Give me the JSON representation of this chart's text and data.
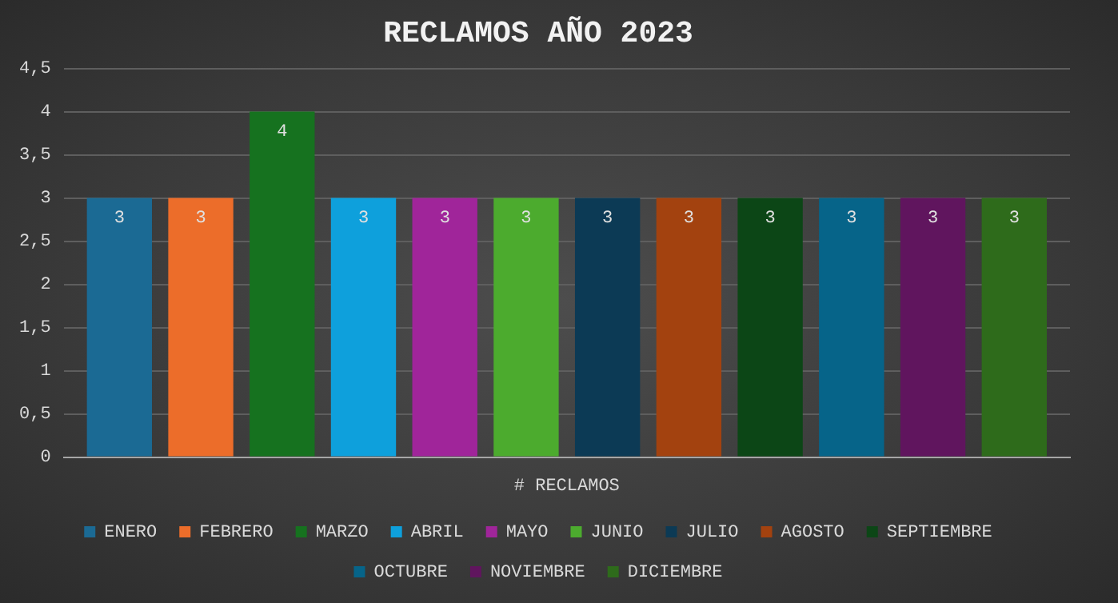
{
  "chart_data": {
    "type": "bar",
    "title": "RECLAMOS AÑO 2023",
    "categories": [
      "# RECLAMOS"
    ],
    "series": [
      {
        "name": "ENERO",
        "color": "#1b6a94",
        "values": [
          3
        ]
      },
      {
        "name": "FEBRERO",
        "color": "#ec6d2a",
        "values": [
          3
        ]
      },
      {
        "name": "MARZO",
        "color": "#16721f",
        "values": [
          4
        ]
      },
      {
        "name": "ABRIL",
        "color": "#0ea0dc",
        "values": [
          3
        ]
      },
      {
        "name": "MAYO",
        "color": "#a0259a",
        "values": [
          3
        ]
      },
      {
        "name": "JUNIO",
        "color": "#4cab2e",
        "values": [
          3
        ]
      },
      {
        "name": "JULIO",
        "color": "#0c3a55",
        "values": [
          3
        ]
      },
      {
        "name": "AGOSTO",
        "color": "#a3420f",
        "values": [
          3
        ]
      },
      {
        "name": "SEPTIEMBRE",
        "color": "#0c4616",
        "values": [
          3
        ]
      },
      {
        "name": "OCTUBRE",
        "color": "#066489",
        "values": [
          3
        ]
      },
      {
        "name": "NOVIEMBRE",
        "color": "#60155e",
        "values": [
          3
        ]
      },
      {
        "name": "DICIEMBRE",
        "color": "#2e6b1b",
        "values": [
          3
        ]
      }
    ],
    "ylim": [
      0,
      4.5
    ],
    "yticks": [
      0,
      {
        "value": 0.5,
        "label": "0,5"
      },
      1,
      {
        "value": 1.5,
        "label": "1,5"
      },
      2,
      {
        "value": 2.5,
        "label": "2,5"
      },
      3,
      {
        "value": 3.5,
        "label": "3,5"
      },
      4,
      {
        "value": 4.5,
        "label": "4,5"
      }
    ],
    "grid": "y",
    "legend": "bottom",
    "data_labels": true
  }
}
